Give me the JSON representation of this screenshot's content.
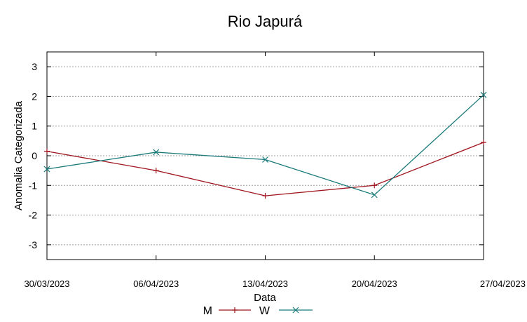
{
  "chart_data": {
    "type": "line",
    "title": "Rio Japurá",
    "xlabel": "Data",
    "ylabel": "Anomalia Categorizada",
    "categories": [
      "30/03/2023",
      "06/04/2023",
      "13/04/2023",
      "20/04/2023",
      "27/04/2023"
    ],
    "ylim": [
      -3.5,
      3.5
    ],
    "yticks": [
      3,
      2,
      1,
      0,
      -1,
      -2,
      -3
    ],
    "grid": true,
    "legend_position": "bottom-center",
    "series": [
      {
        "name": "M",
        "color": "#a0151e",
        "marker": "plus",
        "values": [
          0.15,
          -0.5,
          -1.35,
          -1.0,
          0.45
        ]
      },
      {
        "name": "W",
        "color": "#1b7a7a",
        "marker": "cross",
        "values": [
          -0.45,
          0.12,
          -0.13,
          -1.32,
          2.05
        ]
      }
    ]
  }
}
